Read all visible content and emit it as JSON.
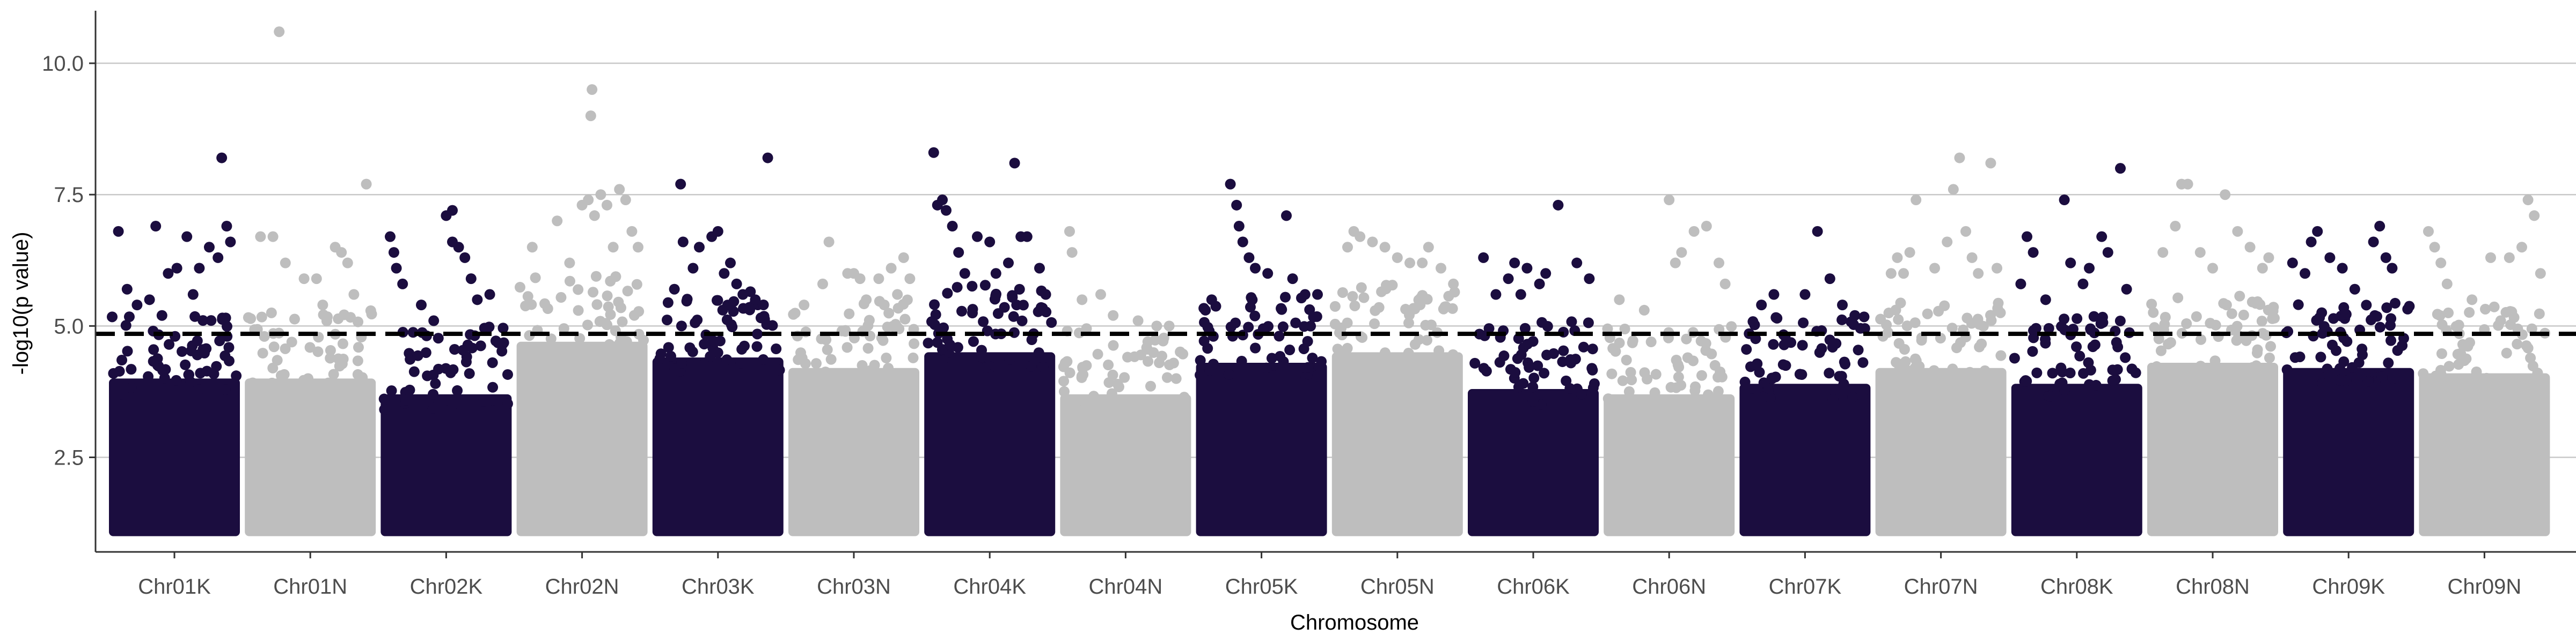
{
  "chart_data": {
    "type": "scatter",
    "subtype": "manhattan",
    "title": "",
    "xlabel": "Chromosome",
    "ylabel": "-log10(p value)",
    "ylim": [
      0.7,
      11.0
    ],
    "yticks": [
      2.5,
      5.0,
      7.5,
      10.0
    ],
    "grid": {
      "horizontal_major": true,
      "vertical": false
    },
    "threshold": 4.85,
    "colors": {
      "dark": "#1b0d3f",
      "light": "#bebebe",
      "threshold": "#000000",
      "grid": "#c8c8c8"
    },
    "categories": [
      "Chr01K",
      "Chr01N",
      "Chr02K",
      "Chr02N",
      "Chr03K",
      "Chr03N",
      "Chr04K",
      "Chr04N",
      "Chr05K",
      "Chr05N",
      "Chr06K",
      "Chr06N",
      "Chr07K",
      "Chr07N",
      "Chr08K",
      "Chr08N",
      "Chr09K",
      "Chr09N"
    ],
    "series": [
      {
        "chromosome": "Chr01K",
        "color": "dark",
        "dense_top": 4.9,
        "peaks": [
          [
            0.05,
            6.8
          ],
          [
            0.12,
            5.7
          ],
          [
            0.2,
            5.4
          ],
          [
            0.35,
            6.9
          ],
          [
            0.45,
            6.0
          ],
          [
            0.52,
            6.1
          ],
          [
            0.6,
            6.7
          ],
          [
            0.7,
            6.1
          ],
          [
            0.78,
            6.5
          ],
          [
            0.85,
            6.3
          ],
          [
            0.88,
            8.2
          ],
          [
            0.92,
            6.9
          ],
          [
            0.95,
            6.6
          ],
          [
            0.3,
            5.5
          ],
          [
            0.65,
            5.6
          ],
          [
            0.4,
            5.2
          ]
        ]
      },
      {
        "chromosome": "Chr01N",
        "color": "light",
        "dense_top": 4.9,
        "peaks": [
          [
            0.1,
            6.7
          ],
          [
            0.2,
            6.7
          ],
          [
            0.25,
            10.6
          ],
          [
            0.3,
            6.2
          ],
          [
            0.45,
            5.9
          ],
          [
            0.55,
            5.9
          ],
          [
            0.7,
            6.5
          ],
          [
            0.75,
            6.4
          ],
          [
            0.8,
            6.2
          ],
          [
            0.95,
            7.7
          ],
          [
            0.6,
            5.4
          ],
          [
            0.85,
            5.6
          ]
        ]
      },
      {
        "chromosome": "Chr02K",
        "color": "dark",
        "dense_top": 4.6,
        "peaks": [
          [
            0.05,
            6.7
          ],
          [
            0.08,
            6.4
          ],
          [
            0.1,
            6.1
          ],
          [
            0.15,
            5.8
          ],
          [
            0.5,
            7.1
          ],
          [
            0.55,
            7.2
          ],
          [
            0.55,
            6.6
          ],
          [
            0.6,
            6.5
          ],
          [
            0.65,
            6.3
          ],
          [
            0.7,
            5.9
          ],
          [
            0.75,
            5.5
          ],
          [
            0.85,
            5.6
          ],
          [
            0.3,
            5.4
          ],
          [
            0.4,
            5.1
          ]
        ]
      },
      {
        "chromosome": "Chr02N",
        "color": "light",
        "dense_top": 5.6,
        "peaks": [
          [
            0.1,
            6.5
          ],
          [
            0.3,
            7.0
          ],
          [
            0.5,
            7.3
          ],
          [
            0.55,
            7.4
          ],
          [
            0.6,
            7.1
          ],
          [
            0.65,
            7.5
          ],
          [
            0.7,
            7.3
          ],
          [
            0.75,
            6.5
          ],
          [
            0.8,
            7.6
          ],
          [
            0.85,
            7.4
          ],
          [
            0.58,
            9.5
          ],
          [
            0.57,
            9.0
          ],
          [
            0.9,
            6.8
          ],
          [
            0.4,
            6.2
          ],
          [
            0.95,
            6.5
          ]
        ]
      },
      {
        "chromosome": "Chr03K",
        "color": "dark",
        "dense_top": 5.3,
        "peaks": [
          [
            0.2,
            7.7
          ],
          [
            0.22,
            6.6
          ],
          [
            0.3,
            6.1
          ],
          [
            0.35,
            6.5
          ],
          [
            0.45,
            6.7
          ],
          [
            0.5,
            6.8
          ],
          [
            0.55,
            6.0
          ],
          [
            0.6,
            6.2
          ],
          [
            0.65,
            5.8
          ],
          [
            0.7,
            5.6
          ],
          [
            0.9,
            8.2
          ],
          [
            0.15,
            5.7
          ],
          [
            0.8,
            5.5
          ]
        ]
      },
      {
        "chromosome": "Chr03N",
        "color": "light",
        "dense_top": 5.1,
        "peaks": [
          [
            0.1,
            5.4
          ],
          [
            0.25,
            5.8
          ],
          [
            0.3,
            6.6
          ],
          [
            0.45,
            6.0
          ],
          [
            0.5,
            6.0
          ],
          [
            0.55,
            5.9
          ],
          [
            0.6,
            5.5
          ],
          [
            0.7,
            5.9
          ],
          [
            0.8,
            6.1
          ],
          [
            0.85,
            5.6
          ],
          [
            0.9,
            6.3
          ],
          [
            0.95,
            5.9
          ]
        ]
      },
      {
        "chromosome": "Chr04K",
        "color": "dark",
        "dense_top": 5.4,
        "peaks": [
          [
            0.05,
            8.3
          ],
          [
            0.08,
            7.3
          ],
          [
            0.12,
            7.4
          ],
          [
            0.15,
            7.2
          ],
          [
            0.2,
            6.9
          ],
          [
            0.25,
            6.4
          ],
          [
            0.3,
            6.0
          ],
          [
            0.4,
            6.7
          ],
          [
            0.5,
            6.6
          ],
          [
            0.55,
            6.0
          ],
          [
            0.65,
            6.2
          ],
          [
            0.7,
            8.1
          ],
          [
            0.75,
            6.7
          ],
          [
            0.8,
            6.7
          ],
          [
            0.9,
            6.1
          ],
          [
            0.95,
            5.6
          ]
        ]
      },
      {
        "chromosome": "Chr04N",
        "color": "light",
        "dense_top": 4.6,
        "peaks": [
          [
            0.05,
            6.8
          ],
          [
            0.07,
            6.4
          ],
          [
            0.15,
            5.5
          ],
          [
            0.3,
            5.6
          ],
          [
            0.4,
            5.2
          ],
          [
            0.6,
            5.1
          ],
          [
            0.75,
            5.0
          ],
          [
            0.85,
            5.0
          ]
        ]
      },
      {
        "chromosome": "Chr05K",
        "color": "dark",
        "dense_top": 5.2,
        "peaks": [
          [
            0.05,
            5.3
          ],
          [
            0.1,
            5.5
          ],
          [
            0.25,
            7.7
          ],
          [
            0.3,
            7.3
          ],
          [
            0.32,
            6.9
          ],
          [
            0.35,
            6.6
          ],
          [
            0.4,
            6.3
          ],
          [
            0.45,
            6.1
          ],
          [
            0.55,
            6.0
          ],
          [
            0.7,
            7.1
          ],
          [
            0.75,
            5.9
          ],
          [
            0.85,
            5.6
          ],
          [
            0.95,
            5.6
          ]
        ]
      },
      {
        "chromosome": "Chr05N",
        "color": "light",
        "dense_top": 5.4,
        "peaks": [
          [
            0.1,
            6.5
          ],
          [
            0.15,
            6.8
          ],
          [
            0.2,
            6.7
          ],
          [
            0.3,
            6.6
          ],
          [
            0.4,
            6.5
          ],
          [
            0.5,
            6.3
          ],
          [
            0.6,
            6.2
          ],
          [
            0.7,
            6.2
          ],
          [
            0.75,
            6.5
          ],
          [
            0.85,
            6.1
          ],
          [
            0.95,
            5.8
          ]
        ]
      },
      {
        "chromosome": "Chr06K",
        "color": "dark",
        "dense_top": 4.7,
        "peaks": [
          [
            0.1,
            6.3
          ],
          [
            0.2,
            5.6
          ],
          [
            0.3,
            5.9
          ],
          [
            0.35,
            6.2
          ],
          [
            0.4,
            5.6
          ],
          [
            0.45,
            6.1
          ],
          [
            0.55,
            5.8
          ],
          [
            0.6,
            6.0
          ],
          [
            0.7,
            7.3
          ],
          [
            0.85,
            6.2
          ],
          [
            0.95,
            5.9
          ]
        ]
      },
      {
        "chromosome": "Chr06N",
        "color": "light",
        "dense_top": 4.6,
        "peaks": [
          [
            0.1,
            5.5
          ],
          [
            0.3,
            5.3
          ],
          [
            0.5,
            7.4
          ],
          [
            0.55,
            6.2
          ],
          [
            0.6,
            6.4
          ],
          [
            0.7,
            6.8
          ],
          [
            0.8,
            6.9
          ],
          [
            0.9,
            6.2
          ],
          [
            0.95,
            5.8
          ]
        ]
      },
      {
        "chromosome": "Chr07K",
        "color": "dark",
        "dense_top": 4.8,
        "peaks": [
          [
            0.15,
            5.4
          ],
          [
            0.25,
            5.6
          ],
          [
            0.5,
            5.6
          ],
          [
            0.6,
            6.8
          ],
          [
            0.7,
            5.9
          ],
          [
            0.8,
            5.4
          ],
          [
            0.9,
            5.2
          ]
        ]
      },
      {
        "chromosome": "Chr07N",
        "color": "light",
        "dense_top": 5.1,
        "peaks": [
          [
            0.1,
            6.0
          ],
          [
            0.15,
            6.3
          ],
          [
            0.2,
            6.0
          ],
          [
            0.25,
            6.4
          ],
          [
            0.3,
            7.4
          ],
          [
            0.45,
            6.1
          ],
          [
            0.55,
            6.6
          ],
          [
            0.6,
            7.6
          ],
          [
            0.65,
            8.2
          ],
          [
            0.7,
            6.8
          ],
          [
            0.75,
            6.3
          ],
          [
            0.8,
            6.0
          ],
          [
            0.9,
            8.1
          ],
          [
            0.95,
            6.1
          ]
        ]
      },
      {
        "chromosome": "Chr08K",
        "color": "dark",
        "dense_top": 4.8,
        "peaks": [
          [
            0.05,
            5.8
          ],
          [
            0.1,
            6.7
          ],
          [
            0.15,
            6.4
          ],
          [
            0.25,
            5.5
          ],
          [
            0.4,
            7.4
          ],
          [
            0.45,
            6.2
          ],
          [
            0.55,
            5.8
          ],
          [
            0.6,
            6.1
          ],
          [
            0.7,
            6.7
          ],
          [
            0.75,
            6.4
          ],
          [
            0.85,
            8.0
          ],
          [
            0.9,
            5.7
          ]
        ]
      },
      {
        "chromosome": "Chr08N",
        "color": "light",
        "dense_top": 5.2,
        "peaks": [
          [
            0.1,
            6.4
          ],
          [
            0.2,
            6.9
          ],
          [
            0.25,
            7.7
          ],
          [
            0.3,
            7.7
          ],
          [
            0.4,
            6.4
          ],
          [
            0.5,
            6.1
          ],
          [
            0.6,
            7.5
          ],
          [
            0.7,
            6.8
          ],
          [
            0.8,
            6.5
          ],
          [
            0.9,
            6.1
          ],
          [
            0.95,
            6.3
          ]
        ]
      },
      {
        "chromosome": "Chr09K",
        "color": "dark",
        "dense_top": 5.1,
        "peaks": [
          [
            0.05,
            6.2
          ],
          [
            0.15,
            6.0
          ],
          [
            0.2,
            6.6
          ],
          [
            0.25,
            6.8
          ],
          [
            0.35,
            6.3
          ],
          [
            0.45,
            6.1
          ],
          [
            0.55,
            5.7
          ],
          [
            0.7,
            6.6
          ],
          [
            0.75,
            6.9
          ],
          [
            0.8,
            6.3
          ],
          [
            0.85,
            6.1
          ]
        ]
      },
      {
        "chromosome": "Chr09N",
        "color": "light",
        "dense_top": 5.0,
        "peaks": [
          [
            0.05,
            6.8
          ],
          [
            0.1,
            6.5
          ],
          [
            0.15,
            6.2
          ],
          [
            0.2,
            5.8
          ],
          [
            0.4,
            5.5
          ],
          [
            0.55,
            6.3
          ],
          [
            0.7,
            6.3
          ],
          [
            0.8,
            6.5
          ],
          [
            0.85,
            7.4
          ],
          [
            0.9,
            7.1
          ],
          [
            0.95,
            6.0
          ]
        ]
      }
    ]
  }
}
